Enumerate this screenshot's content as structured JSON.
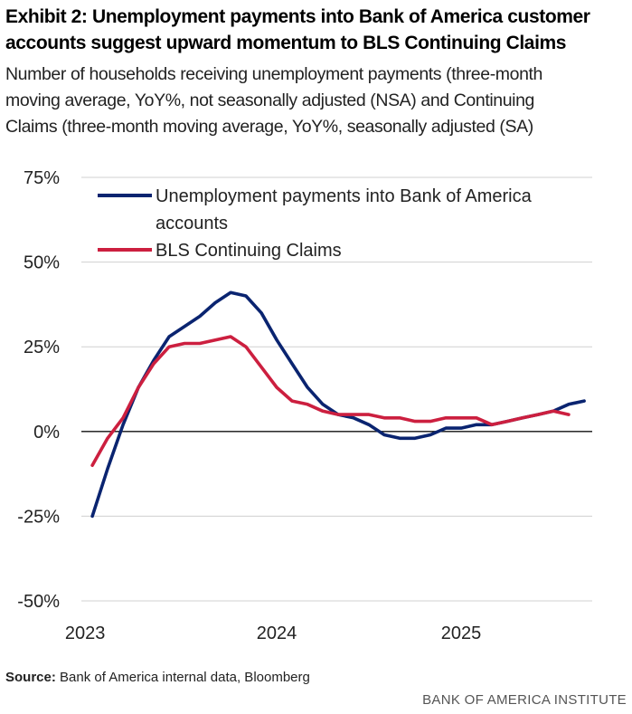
{
  "header": {
    "title_line1": "Exhibit 2: Unemployment payments into Bank of America customer",
    "title_line2": "accounts suggest upward momentum to BLS Continuing Claims",
    "subtitle_line1": "Number of households receiving unemployment payments (three-month",
    "subtitle_line2": "moving average, YoY%, not seasonally adjusted (NSA) and Continuing",
    "subtitle_line3": "Claims (three-month moving average, YoY%, seasonally adjusted (SA)"
  },
  "footer": {
    "source_label": "Source:",
    "source_text": "Bank of America internal data, Bloomberg",
    "brand": "BANK OF AMERICA INSTITUTE"
  },
  "chart_data": {
    "type": "line",
    "title": "Exhibit 2: Unemployment payments into Bank of America customer accounts suggest upward momentum to BLS Continuing Claims",
    "xlabel": "",
    "ylabel": "",
    "ylim": [
      -50,
      75
    ],
    "yticks": [
      75,
      50,
      25,
      0,
      -25,
      -50
    ],
    "ytick_labels": [
      "75%",
      "50%",
      "25%",
      "0%",
      "-25%",
      "-50%"
    ],
    "xticks": [
      2023,
      2024,
      2025
    ],
    "xtick_labels": [
      "2023",
      "2024",
      "2025"
    ],
    "xlim": [
      2023.0,
      2025.75
    ],
    "grid": "horizontal",
    "legend_position": "top-left",
    "legend_line1_label": "Unemployment payments into Bank of America",
    "legend_line2_label": "accounts",
    "legend_bls_label": "BLS Continuing Claims",
    "series": [
      {
        "name": "Unemployment payments into Bank of America accounts",
        "color": "#0a2470",
        "x": [
          2023.0,
          2023.083,
          2023.167,
          2023.25,
          2023.333,
          2023.417,
          2023.5,
          2023.583,
          2023.667,
          2023.75,
          2023.833,
          2023.917,
          2024.0,
          2024.083,
          2024.167,
          2024.25,
          2024.333,
          2024.417,
          2024.5,
          2024.583,
          2024.667,
          2024.75,
          2024.833,
          2024.917,
          2025.0,
          2025.083,
          2025.167,
          2025.25,
          2025.333,
          2025.417,
          2025.5,
          2025.583,
          2025.667
        ],
        "y": [
          -25,
          -11,
          2,
          13,
          21,
          28,
          31,
          34,
          38,
          41,
          40,
          35,
          27,
          20,
          13,
          8,
          5,
          4,
          2,
          -1,
          -2,
          -2,
          -1,
          1,
          1,
          2,
          2,
          3,
          4,
          5,
          6,
          8,
          9
        ]
      },
      {
        "name": "BLS Continuing Claims",
        "color": "#cc1f3f",
        "x": [
          2023.0,
          2023.083,
          2023.167,
          2023.25,
          2023.333,
          2023.417,
          2023.5,
          2023.583,
          2023.667,
          2023.75,
          2023.833,
          2023.917,
          2024.0,
          2024.083,
          2024.167,
          2024.25,
          2024.333,
          2024.417,
          2024.5,
          2024.583,
          2024.667,
          2024.75,
          2024.833,
          2024.917,
          2025.0,
          2025.083,
          2025.167,
          2025.25,
          2025.333,
          2025.417,
          2025.5,
          2025.583
        ],
        "y": [
          -10,
          -2,
          4,
          13,
          20,
          25,
          26,
          26,
          27,
          28,
          25,
          19,
          13,
          9,
          8,
          6,
          5,
          5,
          5,
          4,
          4,
          3,
          3,
          4,
          4,
          4,
          2,
          3,
          4,
          5,
          6,
          5
        ]
      }
    ]
  }
}
